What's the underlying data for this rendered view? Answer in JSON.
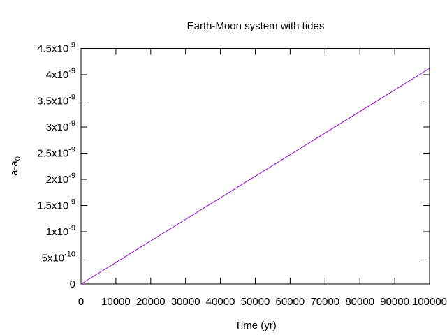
{
  "chart_data": {
    "type": "line",
    "title": "Earth-Moon system with tides",
    "xlabel": "Time (yr)",
    "ylabel": {
      "base": "a-a",
      "subscript": "0"
    },
    "xlim": [
      0,
      100000
    ],
    "ylim": [
      0,
      4.5e-09
    ],
    "x_ticks": [
      {
        "value": 0,
        "label": "0"
      },
      {
        "value": 10000,
        "label": "10000"
      },
      {
        "value": 20000,
        "label": "20000"
      },
      {
        "value": 30000,
        "label": "30000"
      },
      {
        "value": 40000,
        "label": "40000"
      },
      {
        "value": 50000,
        "label": "50000"
      },
      {
        "value": 60000,
        "label": "60000"
      },
      {
        "value": 70000,
        "label": "70000"
      },
      {
        "value": 80000,
        "label": "80000"
      },
      {
        "value": 90000,
        "label": "90000"
      },
      {
        "value": 100000,
        "label": "100000"
      }
    ],
    "y_ticks": [
      {
        "value": 0,
        "mantissa": "0",
        "exp": ""
      },
      {
        "value": 5e-10,
        "mantissa": "5x10",
        "exp": "-10"
      },
      {
        "value": 1e-09,
        "mantissa": "1x10",
        "exp": "-9"
      },
      {
        "value": 1.5e-09,
        "mantissa": "1.5x10",
        "exp": "-9"
      },
      {
        "value": 2e-09,
        "mantissa": "2x10",
        "exp": "-9"
      },
      {
        "value": 2.5e-09,
        "mantissa": "2.5x10",
        "exp": "-9"
      },
      {
        "value": 3e-09,
        "mantissa": "3x10",
        "exp": "-9"
      },
      {
        "value": 3.5e-09,
        "mantissa": "3.5x10",
        "exp": "-9"
      },
      {
        "value": 4e-09,
        "mantissa": "4x10",
        "exp": "-9"
      },
      {
        "value": 4.5e-09,
        "mantissa": "4.5x10",
        "exp": "-9"
      }
    ],
    "grid": false,
    "legend": "none",
    "series": [
      {
        "color": "#9400d3",
        "x": [
          0,
          100000
        ],
        "y": [
          0,
          4.12e-09
        ]
      }
    ]
  }
}
